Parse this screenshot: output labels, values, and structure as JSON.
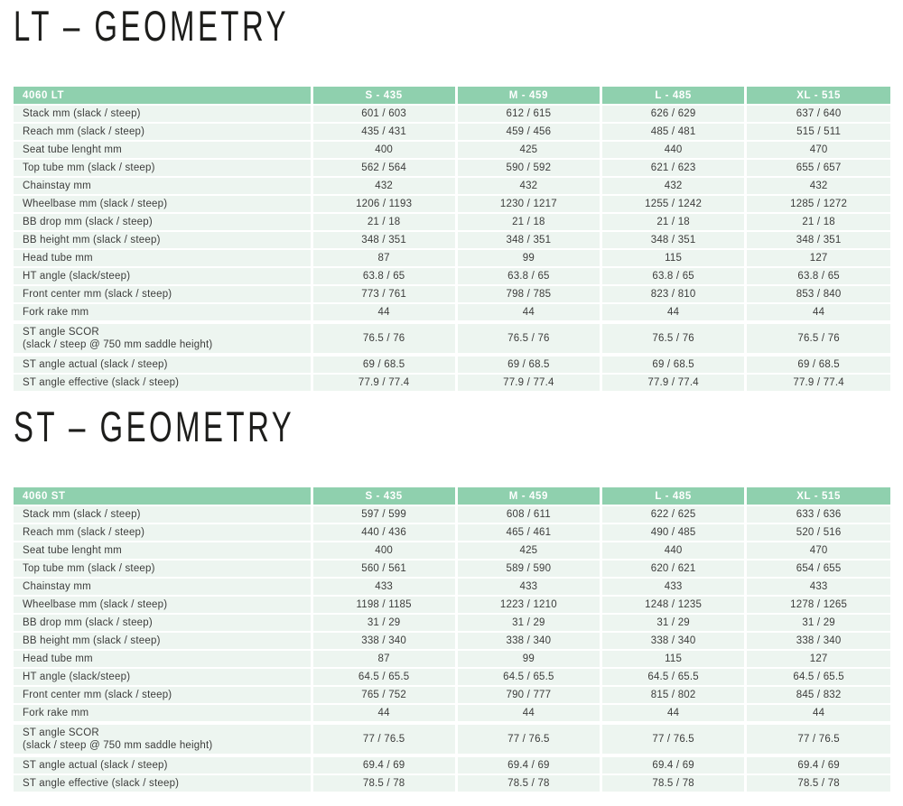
{
  "colors": {
    "table_header_green": "#8fd0ae",
    "row_background_mint": "#edf5f0",
    "header_text": "#ffffff",
    "body_text": "#3c3c3b",
    "heading_text": "#1d1d1b"
  },
  "sections": [
    {
      "heading": "LT – GEOMETRY",
      "table": {
        "header": [
          "4060 LT",
          "S - 435",
          "M - 459",
          "L - 485",
          "XL - 515"
        ],
        "rows": [
          {
            "label": "Stack mm (slack / steep)",
            "values": [
              "601 / 603",
              "612 / 615",
              "626 / 629",
              "637 / 640"
            ]
          },
          {
            "label": "Reach mm (slack / steep)",
            "values": [
              "435 / 431",
              "459 / 456",
              "485 / 481",
              "515 / 511"
            ]
          },
          {
            "label": "Seat tube lenght mm",
            "values": [
              "400",
              "425",
              "440",
              "470"
            ]
          },
          {
            "label": "Top tube mm (slack / steep)",
            "values": [
              "562 / 564",
              "590 / 592",
              "621 / 623",
              "655 / 657"
            ]
          },
          {
            "label": "Chainstay mm",
            "values": [
              "432",
              "432",
              "432",
              "432"
            ]
          },
          {
            "label": "Wheelbase mm (slack / steep)",
            "values": [
              "1206 / 1193",
              "1230 / 1217",
              "1255 / 1242",
              "1285 / 1272"
            ]
          },
          {
            "label": "BB drop mm (slack / steep)",
            "values": [
              "21 / 18",
              "21 / 18",
              "21 / 18",
              "21 / 18"
            ]
          },
          {
            "label": "BB height mm (slack / steep)",
            "values": [
              "348 / 351",
              "348 / 351",
              "348 / 351",
              "348 / 351"
            ]
          },
          {
            "label": "Head tube mm",
            "values": [
              "87",
              "99",
              "115",
              "127"
            ]
          },
          {
            "label": "HT angle (slack/steep)",
            "values": [
              "63.8 / 65",
              "63.8 / 65",
              "63.8 / 65",
              "63.8 / 65"
            ]
          },
          {
            "label": "Front center mm (slack / steep)",
            "values": [
              "773 / 761",
              "798 / 785",
              "823 / 810",
              "853 / 840"
            ]
          },
          {
            "label": "Fork rake mm",
            "values": [
              "44",
              "44",
              "44",
              "44"
            ]
          },
          {
            "label": "ST angle SCOR\n(slack / steep @ 750 mm saddle height)",
            "values": [
              "76.5 / 76",
              "76.5 / 76",
              "76.5 / 76",
              "76.5 / 76"
            ]
          },
          {
            "label": "ST angle actual (slack / steep)",
            "values": [
              "69 / 68.5",
              "69 / 68.5",
              "69 / 68.5",
              "69 / 68.5"
            ]
          },
          {
            "label": "ST angle effective (slack / steep)",
            "values": [
              "77.9 / 77.4",
              "77.9 / 77.4",
              "77.9 / 77.4",
              "77.9 / 77.4"
            ]
          }
        ]
      }
    },
    {
      "heading": "ST – GEOMETRY",
      "table": {
        "header": [
          "4060 ST",
          "S - 435",
          "M - 459",
          "L - 485",
          "XL - 515"
        ],
        "rows": [
          {
            "label": "Stack mm (slack / steep)",
            "values": [
              "597 / 599",
              "608 / 611",
              "622 / 625",
              "633 / 636"
            ]
          },
          {
            "label": "Reach mm (slack / steep)",
            "values": [
              "440 / 436",
              "465 / 461",
              "490 / 485",
              "520 / 516"
            ]
          },
          {
            "label": "Seat tube lenght mm",
            "values": [
              "400",
              "425",
              "440",
              "470"
            ]
          },
          {
            "label": "Top tube mm (slack / steep)",
            "values": [
              "560 / 561",
              "589 / 590",
              "620 / 621",
              "654 / 655"
            ]
          },
          {
            "label": "Chainstay mm",
            "values": [
              "433",
              "433",
              "433",
              "433"
            ]
          },
          {
            "label": "Wheelbase mm (slack / steep)",
            "values": [
              "1198 / 1185",
              "1223 / 1210",
              "1248 / 1235",
              "1278 / 1265"
            ]
          },
          {
            "label": "BB drop mm (slack / steep)",
            "values": [
              "31 / 29",
              "31 / 29",
              "31 / 29",
              "31 / 29"
            ]
          },
          {
            "label": "BB height mm (slack / steep)",
            "values": [
              "338 / 340",
              "338 / 340",
              "338 / 340",
              "338 / 340"
            ]
          },
          {
            "label": "Head tube mm",
            "values": [
              "87",
              "99",
              "115",
              "127"
            ]
          },
          {
            "label": "HT angle (slack/steep)",
            "values": [
              "64.5 / 65.5",
              "64.5 / 65.5",
              "64.5 / 65.5",
              "64.5 / 65.5"
            ]
          },
          {
            "label": "Front center mm (slack / steep)",
            "values": [
              "765 / 752",
              "790 / 777",
              "815 / 802",
              "845 / 832"
            ]
          },
          {
            "label": "Fork rake mm",
            "values": [
              "44",
              "44",
              "44",
              "44"
            ]
          },
          {
            "label": "ST angle SCOR\n(slack / steep @ 750 mm saddle height)",
            "values": [
              "77 / 76.5",
              "77 / 76.5",
              "77 / 76.5",
              "77 / 76.5"
            ]
          },
          {
            "label": "ST angle actual (slack / steep)",
            "values": [
              "69.4 / 69",
              "69.4 / 69",
              "69.4 / 69",
              "69.4 / 69"
            ]
          },
          {
            "label": "ST angle effective (slack / steep)",
            "values": [
              "78.5 / 78",
              "78.5 / 78",
              "78.5 / 78",
              "78.5 / 78"
            ]
          }
        ]
      }
    }
  ]
}
